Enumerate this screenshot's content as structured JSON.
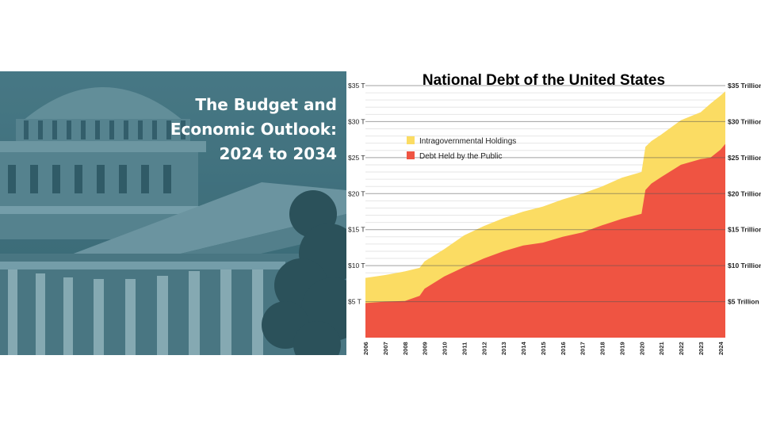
{
  "report": {
    "title_lines": [
      "The Budget and",
      "Economic Outlook:",
      "2024 to 2034"
    ]
  },
  "chart_data": {
    "type": "area",
    "title": "National Debt of the United States",
    "x_ticks": [
      "2006",
      "2007",
      "2008",
      "2009",
      "2010",
      "2011",
      "2012",
      "2013",
      "2014",
      "2015",
      "2016",
      "2017",
      "2018",
      "2019",
      "2020",
      "2021",
      "2022",
      "2023",
      "2024"
    ],
    "y_ticks_left": [
      "$5 T",
      "$10 T",
      "$15 T",
      "$20 T",
      "$25 T",
      "$30 T",
      "$35 T"
    ],
    "y_ticks_right": [
      "$5 Trillion",
      "$10 Trillion",
      "$15 Trillion",
      "$20 Trillion",
      "$25 Trillion",
      "$30 Trillion",
      "$35 Trillion"
    ],
    "ylim": [
      0,
      35
    ],
    "xlim": [
      2006,
      2024.25
    ],
    "legend_position": "upper-left",
    "gridlines": true,
    "series": [
      {
        "name": "Intragovernmental Holdings",
        "color": "#fbdc63",
        "x": [
          2006,
          2007,
          2008,
          2008.75,
          2009,
          2010,
          2011,
          2012,
          2013,
          2014,
          2015,
          2016,
          2017,
          2018,
          2019,
          2020,
          2020.2,
          2020.5,
          2021,
          2022,
          2023,
          2023.5,
          2024,
          2024.25
        ],
        "values": [
          8.3,
          8.7,
          9.2,
          9.7,
          10.6,
          12.3,
          14.2,
          15.5,
          16.6,
          17.5,
          18.2,
          19.2,
          20.0,
          21.0,
          22.2,
          23.0,
          26.5,
          27.3,
          28.2,
          30.2,
          31.3,
          32.5,
          33.6,
          34.2
        ]
      },
      {
        "name": "Debt Held by the Public",
        "color": "#ef5442",
        "x": [
          2006,
          2007,
          2008,
          2008.75,
          2009,
          2010,
          2011,
          2012,
          2013,
          2014,
          2015,
          2016,
          2017,
          2018,
          2019,
          2020,
          2020.2,
          2020.5,
          2021,
          2022,
          2023,
          2023.5,
          2024,
          2024.25
        ],
        "values": [
          4.8,
          5.0,
          5.1,
          5.8,
          6.8,
          8.5,
          9.8,
          11.0,
          12.0,
          12.8,
          13.2,
          14.0,
          14.6,
          15.6,
          16.5,
          17.2,
          20.5,
          21.4,
          22.3,
          24.0,
          24.8,
          25.0,
          26.1,
          26.9
        ]
      }
    ]
  }
}
